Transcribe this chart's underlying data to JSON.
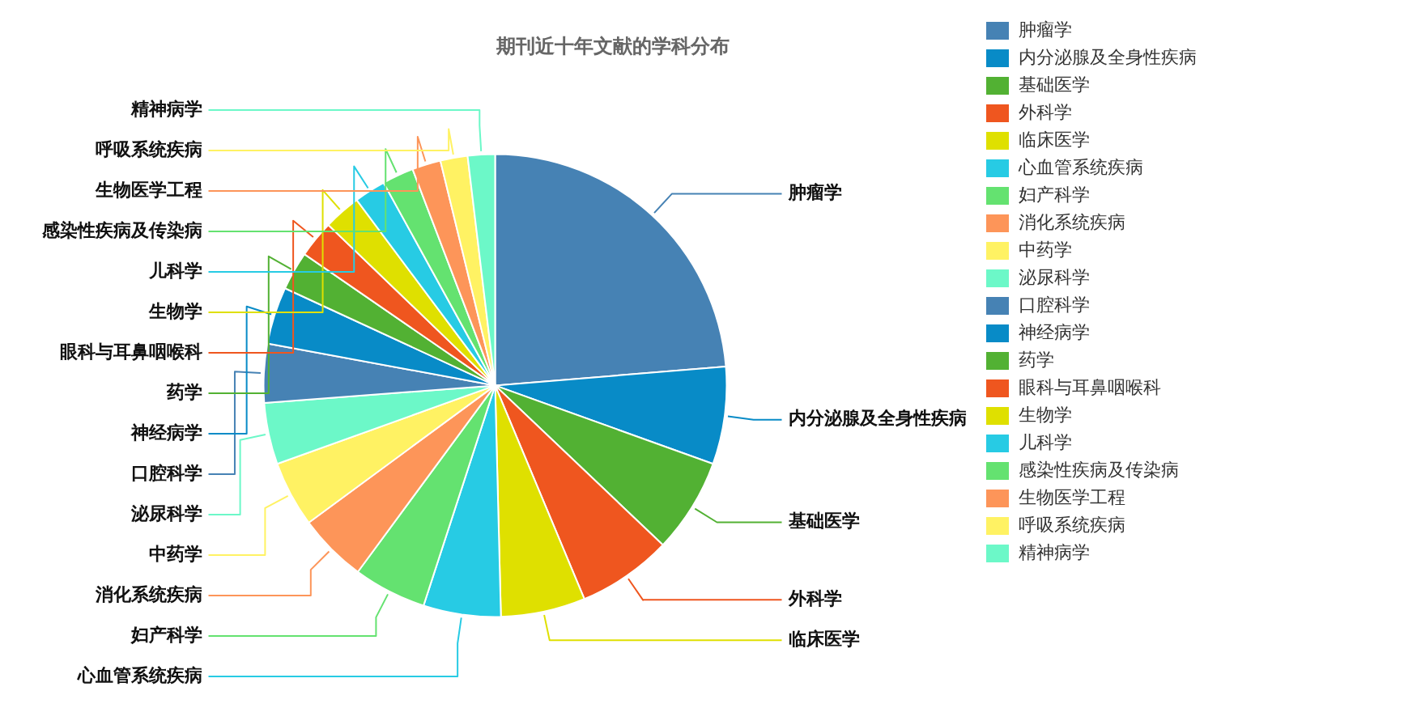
{
  "chart_data": {
    "type": "pie",
    "title": "期刊近十年文献的学科分布",
    "categories": [
      "肿瘤学",
      "内分泌腺及全身性疾病",
      "基础医学",
      "外科学",
      "临床医学",
      "心血管系统疾病",
      "妇产科学",
      "消化系统疾病",
      "中药学",
      "泌尿科学",
      "口腔科学",
      "神经病学",
      "药学",
      "眼科与耳鼻咽喉科",
      "生物学",
      "儿科学",
      "感染性疾病及传染病",
      "生物医学工程",
      "呼吸系统疾病",
      "精神病学"
    ],
    "values": [
      23.7,
      6.8,
      6.6,
      6.6,
      5.9,
      5.4,
      5.1,
      4.8,
      4.6,
      4.3,
      4.1,
      4.0,
      2.7,
      2.6,
      2.6,
      2.2,
      2.2,
      2.0,
      1.9,
      1.9
    ],
    "colors": [
      "#4682b4",
      "#088bc7",
      "#52b133",
      "#ef561f",
      "#dfe000",
      "#27cbe4",
      "#64e270",
      "#fd9559",
      "#fff263",
      "#6cf8c8",
      "#4682b4",
      "#088bc7",
      "#52b133",
      "#ef561f",
      "#dfe000",
      "#27cbe4",
      "#64e270",
      "#fd9559",
      "#fff263",
      "#6cf8c8"
    ],
    "legend": "right"
  }
}
